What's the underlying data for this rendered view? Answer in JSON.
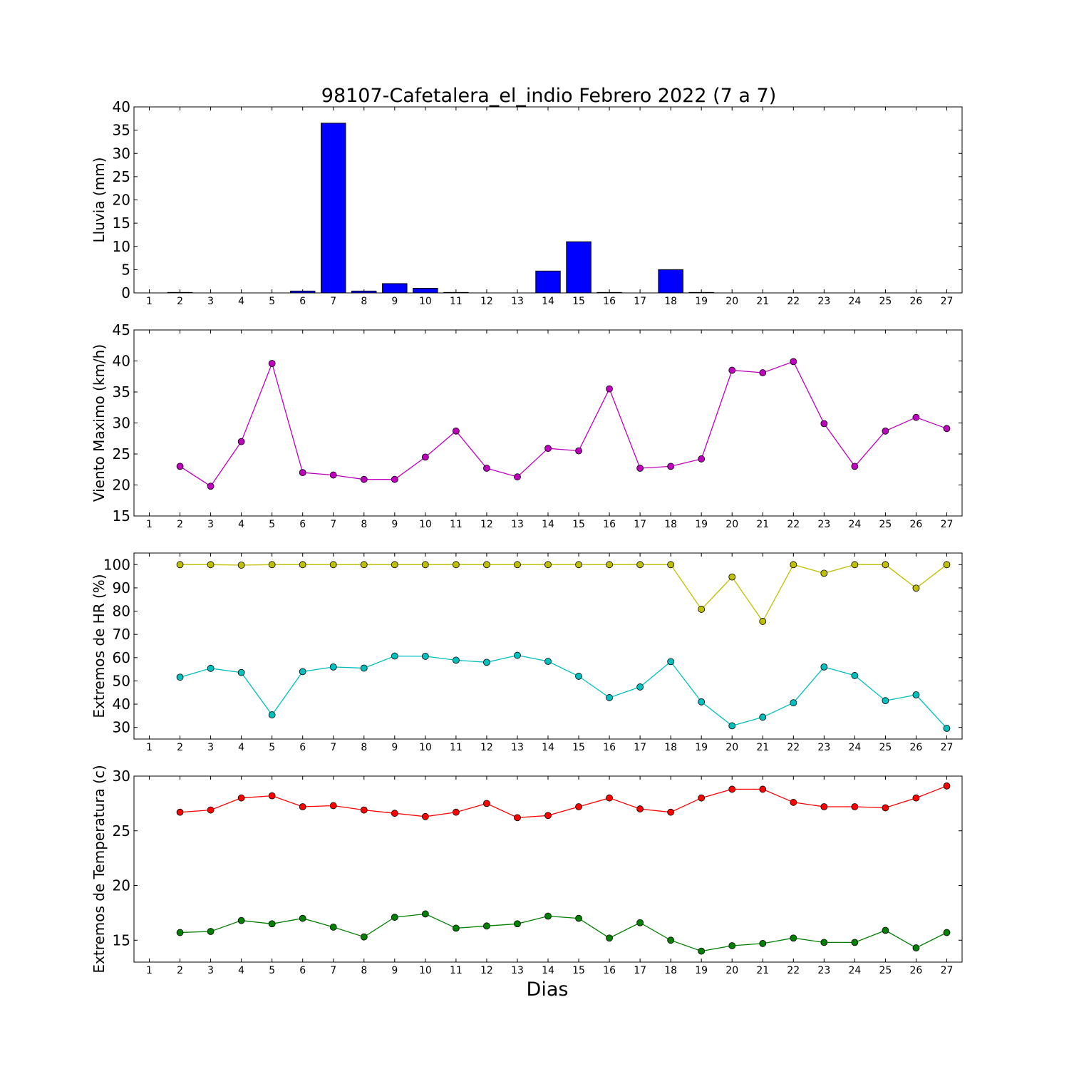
{
  "figure": {
    "title": "98107-Cafetalera_el_indio Febrero 2022  (7 a 7)",
    "xlabel": "Dias"
  },
  "chart_data": [
    {
      "type": "bar",
      "ylabel": "Lluvia (mm)",
      "ylim": [
        0,
        40
      ],
      "yticks": [
        0,
        5,
        10,
        15,
        20,
        25,
        30,
        35,
        40
      ],
      "xlim": [
        0.5,
        27.5
      ],
      "categories": [
        1,
        2,
        3,
        4,
        5,
        6,
        7,
        8,
        9,
        10,
        11,
        12,
        13,
        14,
        15,
        16,
        17,
        18,
        19,
        20,
        21,
        22,
        23,
        24,
        25,
        26,
        27
      ],
      "values": [
        0,
        0.1,
        0,
        0,
        0,
        0.4,
        36.5,
        0.4,
        2.0,
        1.0,
        0.1,
        0,
        0,
        4.7,
        11.0,
        0.1,
        0,
        5.0,
        0.1,
        0,
        0,
        0,
        0,
        0,
        0,
        0,
        0
      ],
      "color": "#0000ff"
    },
    {
      "type": "line",
      "ylabel": "Viento Maximo (km/h)",
      "ylim": [
        15,
        45
      ],
      "yticks": [
        15,
        20,
        25,
        30,
        35,
        40,
        45
      ],
      "xlim": [
        0.5,
        27.5
      ],
      "xticks": [
        1,
        2,
        3,
        4,
        5,
        6,
        7,
        8,
        9,
        10,
        11,
        12,
        13,
        14,
        15,
        16,
        17,
        18,
        19,
        20,
        21,
        22,
        23,
        24,
        25,
        26,
        27
      ],
      "series": [
        {
          "color": "#bf00bf",
          "x": [
            2,
            3,
            4,
            5,
            6,
            7,
            8,
            9,
            10,
            11,
            12,
            13,
            14,
            15,
            16,
            17,
            18,
            19,
            20,
            21,
            22,
            23,
            24,
            25,
            26,
            27
          ],
          "values": [
            23.0,
            19.8,
            27.0,
            39.6,
            22.0,
            21.6,
            20.9,
            20.9,
            24.5,
            28.7,
            22.7,
            21.3,
            25.9,
            25.5,
            35.5,
            22.7,
            23.0,
            24.2,
            38.5,
            38.1,
            39.9,
            29.9,
            23.0,
            28.7,
            30.9,
            29.1
          ]
        }
      ]
    },
    {
      "type": "line",
      "ylabel": "Extremos de HR (%)",
      "ylim": [
        25,
        105
      ],
      "yticks": [
        30,
        40,
        50,
        60,
        70,
        80,
        90,
        100
      ],
      "xlim": [
        0.5,
        27.5
      ],
      "xticks": [
        1,
        2,
        3,
        4,
        5,
        6,
        7,
        8,
        9,
        10,
        11,
        12,
        13,
        14,
        15,
        16,
        17,
        18,
        19,
        20,
        21,
        22,
        23,
        24,
        25,
        26,
        27
      ],
      "series": [
        {
          "color": "#bfbf00",
          "x": [
            2,
            3,
            4,
            5,
            6,
            7,
            8,
            9,
            10,
            11,
            12,
            13,
            14,
            15,
            16,
            17,
            18,
            19,
            20,
            21,
            22,
            23,
            24,
            25,
            26,
            27
          ],
          "values": [
            100,
            100,
            99.8,
            100,
            100,
            100,
            100,
            100,
            100,
            100,
            100,
            100,
            100,
            100,
            100,
            100,
            100,
            80.8,
            94.7,
            75.6,
            100,
            96.3,
            100,
            100,
            89.9,
            100
          ]
        },
        {
          "color": "#00bfbf",
          "x": [
            2,
            3,
            4,
            5,
            6,
            7,
            8,
            9,
            10,
            11,
            12,
            13,
            14,
            15,
            16,
            17,
            18,
            19,
            20,
            21,
            22,
            23,
            24,
            25,
            26,
            27
          ],
          "values": [
            51.6,
            55.4,
            53.6,
            35.4,
            54.0,
            56.0,
            55.5,
            60.7,
            60.6,
            58.9,
            58.0,
            61.0,
            58.4,
            52.0,
            42.8,
            47.4,
            58.3,
            41.0,
            30.7,
            34.4,
            40.6,
            56.0,
            52.3,
            41.5,
            44.0,
            29.6
          ]
        }
      ]
    },
    {
      "type": "line",
      "ylabel": "Extremos de Temperatura (c)",
      "ylim": [
        13,
        30
      ],
      "yticks": [
        15,
        20,
        25,
        30
      ],
      "xlim": [
        0.5,
        27.5
      ],
      "xticks": [
        1,
        2,
        3,
        4,
        5,
        6,
        7,
        8,
        9,
        10,
        11,
        12,
        13,
        14,
        15,
        16,
        17,
        18,
        19,
        20,
        21,
        22,
        23,
        24,
        25,
        26,
        27
      ],
      "series": [
        {
          "color": "#ff0000",
          "x": [
            2,
            3,
            4,
            5,
            6,
            7,
            8,
            9,
            10,
            11,
            12,
            13,
            14,
            15,
            16,
            17,
            18,
            19,
            20,
            21,
            22,
            23,
            24,
            25,
            26,
            27
          ],
          "values": [
            26.7,
            26.9,
            28.0,
            28.2,
            27.2,
            27.3,
            26.9,
            26.6,
            26.3,
            26.7,
            27.5,
            26.2,
            26.4,
            27.2,
            28.0,
            27.0,
            26.7,
            28.0,
            28.8,
            28.8,
            27.6,
            27.2,
            27.2,
            27.1,
            28.0,
            29.1
          ]
        },
        {
          "color": "#008000",
          "x": [
            2,
            3,
            4,
            5,
            6,
            7,
            8,
            9,
            10,
            11,
            12,
            13,
            14,
            15,
            16,
            17,
            18,
            19,
            20,
            21,
            22,
            23,
            24,
            25,
            26,
            27
          ],
          "values": [
            15.7,
            15.8,
            16.8,
            16.5,
            17.0,
            16.2,
            15.3,
            17.1,
            17.4,
            16.1,
            16.3,
            16.5,
            17.2,
            17.0,
            15.2,
            16.6,
            15.0,
            14.0,
            14.5,
            14.7,
            15.2,
            14.8,
            14.8,
            15.9,
            14.3,
            15.7
          ]
        }
      ]
    }
  ]
}
